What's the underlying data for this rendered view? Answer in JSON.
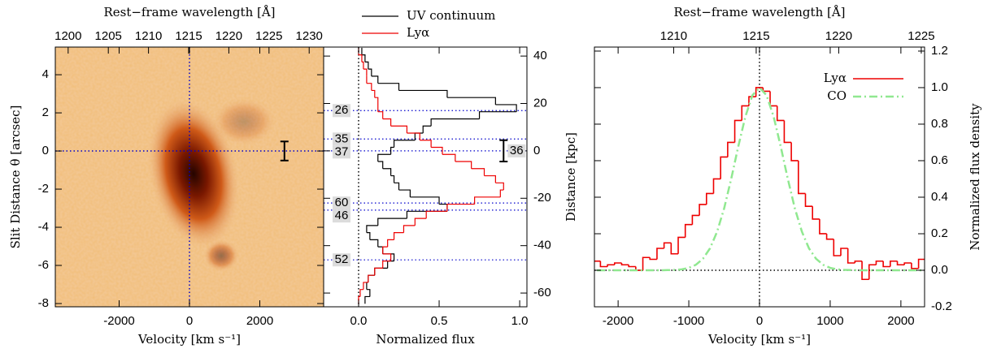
{
  "chart_data": [
    {
      "type": "image",
      "top_xlabel": "Rest−frame wavelength [Å]",
      "xlabel": "Velocity [km s⁻¹]",
      "ylabel": "Slit Distance θ [arcsec]",
      "xlim": [
        -3815,
        3815
      ],
      "xticks": [
        -2000,
        0,
        2000
      ],
      "top_xlim": [
        1198.4,
        1231.8
      ],
      "top_xticks": [
        1200,
        1205,
        1210,
        1215,
        1220,
        1225,
        1230
      ],
      "ylim": [
        -8.17,
        5.45
      ],
      "yticks": [
        -8,
        -6,
        -4,
        -2,
        0,
        2,
        4
      ],
      "reference_lines": {
        "x": 0,
        "y": 0
      },
      "reference_color": "#0000cc",
      "error_bar": {
        "x": 2700,
        "y": 0,
        "err": 0.5
      }
    },
    {
      "type": "step-profile",
      "xlabel": "Normalized flux",
      "ylabel": "Distance [kpc]",
      "xlim": [
        -0.217,
        1.045
      ],
      "xticks": [
        {
          "value": 0,
          "label": "0.0"
        },
        0.5,
        {
          "value": 1,
          "label": "1.0"
        }
      ],
      "ylim": [
        -65.8,
        43.8
      ],
      "yticks": [
        -60,
        -40,
        -20,
        0,
        20,
        40
      ],
      "positions": [
        42,
        39,
        36,
        33,
        30,
        27,
        24,
        21,
        18,
        15,
        12,
        9,
        6,
        3,
        0,
        -3,
        -6,
        -9,
        -12,
        -15,
        -18,
        -21,
        -24,
        -27,
        -30,
        -33,
        -36,
        -39,
        -42,
        -45,
        -48,
        -51,
        -54,
        -57,
        -60,
        -63
      ],
      "series": [
        {
          "name": "UV continuum",
          "color": "#000000",
          "values": [
            0.02,
            0.04,
            0.06,
            0.08,
            0.12,
            0.25,
            0.55,
            0.85,
            0.98,
            0.75,
            0.45,
            0.4,
            0.35,
            0.22,
            0.2,
            0.12,
            0.15,
            0.2,
            0.22,
            0.25,
            0.32,
            0.5,
            0.55,
            0.3,
            0.12,
            0.05,
            0.07,
            0.12,
            0.15,
            0.22,
            0.18,
            0.1,
            0.06,
            0.05,
            0.07,
            0.04
          ]
        },
        {
          "name": "Lyα",
          "color": "#ee0000",
          "values": [
            0.0,
            0.02,
            0.03,
            0.05,
            0.05,
            0.08,
            0.1,
            0.12,
            0.12,
            0.15,
            0.2,
            0.3,
            0.38,
            0.45,
            0.52,
            0.6,
            0.7,
            0.78,
            0.85,
            0.9,
            0.88,
            0.72,
            0.55,
            0.42,
            0.35,
            0.28,
            0.22,
            0.18,
            0.15,
            0.2,
            0.15,
            0.1,
            0.06,
            0.03,
            0.01,
            0.0
          ]
        }
      ],
      "legend": "top-outside",
      "reference_lines": {
        "x": 0
      },
      "reference_color": "#000000",
      "annotations": [
        {
          "text": "26",
          "y": 17
        },
        {
          "text": "35",
          "y": 5
        },
        {
          "text": "37",
          "y": 0
        },
        {
          "text": "60",
          "y": -22
        },
        {
          "text": "46",
          "y": -25
        },
        {
          "text": "52",
          "y": -46
        }
      ],
      "annotation_color": "#0000cc",
      "error_bar": {
        "x": 0.9,
        "y": 0,
        "err": 4.5,
        "label": "36"
      }
    },
    {
      "type": "step-line",
      "top_xlabel": "Rest−frame wavelength [Å]",
      "xlabel": "Velocity [km s⁻¹]",
      "ylabel": "Normalized flux density",
      "xlim": [
        -2335,
        2335
      ],
      "xticks": [
        -2000,
        -1000,
        0,
        1000,
        2000
      ],
      "top_xlim": [
        1205.2,
        1225.2
      ],
      "top_xticks": [
        1210,
        1215,
        1220,
        1225
      ],
      "ylim": [
        -0.2,
        1.222
      ],
      "yticks": [
        -0.2,
        {
          "value": 0,
          "label": "0.0"
        },
        0.2,
        0.4,
        0.6,
        0.8,
        {
          "value": 1,
          "label": "1.0"
        },
        1.2
      ],
      "x": [
        -2300,
        -2200,
        -2100,
        -2000,
        -1900,
        -1800,
        -1700,
        -1600,
        -1500,
        -1400,
        -1300,
        -1200,
        -1100,
        -1000,
        -900,
        -800,
        -700,
        -600,
        -500,
        -400,
        -300,
        -200,
        -100,
        0,
        100,
        200,
        300,
        400,
        500,
        600,
        700,
        800,
        900,
        1000,
        1100,
        1200,
        1300,
        1400,
        1500,
        1600,
        1700,
        1800,
        1900,
        2000,
        2100,
        2200,
        2300
      ],
      "series": [
        {
          "name": "Lyα",
          "color": "#ee0000",
          "style": "step",
          "values": [
            0.05,
            0.02,
            0.03,
            0.04,
            0.03,
            0.02,
            0.0,
            0.07,
            0.06,
            0.12,
            0.15,
            0.09,
            0.18,
            0.25,
            0.3,
            0.36,
            0.42,
            0.5,
            0.62,
            0.7,
            0.82,
            0.9,
            0.95,
            1.0,
            0.98,
            0.9,
            0.82,
            0.7,
            0.6,
            0.42,
            0.35,
            0.28,
            0.2,
            0.17,
            0.08,
            0.12,
            0.04,
            0.05,
            -0.05,
            0.03,
            0.05,
            0.02,
            0.05,
            0.03,
            0.04,
            0.01,
            0.06
          ]
        },
        {
          "name": "CO",
          "color": "#90e890",
          "style": "dashdot",
          "values": [
            0,
            0,
            0,
            0,
            0,
            0,
            0,
            0,
            0,
            0,
            0.001,
            0.002,
            0.005,
            0.013,
            0.03,
            0.063,
            0.12,
            0.211,
            0.339,
            0.501,
            0.678,
            0.841,
            0.958,
            1.0,
            0.958,
            0.841,
            0.678,
            0.501,
            0.339,
            0.211,
            0.12,
            0.063,
            0.03,
            0.013,
            0.005,
            0.002,
            0.001,
            0,
            0,
            0,
            0,
            0,
            0,
            0,
            0,
            0,
            0
          ]
        }
      ],
      "legend": "upper right",
      "reference_lines": {
        "x": 0,
        "y": 0
      },
      "reference_color": "#000000"
    }
  ]
}
